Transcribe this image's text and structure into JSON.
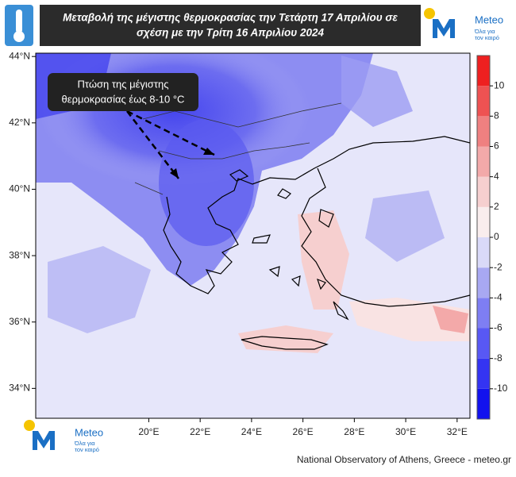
{
  "header": {
    "title_lines": [
      "Μεταβολή της μέγιστης θερμοκρασίας την Τετάρτη 17 Απριλίου σε",
      "σχέση με την Τρίτη 16 Απριλίου 2024"
    ]
  },
  "logo": {
    "name": "Meteo",
    "slogan_lines": [
      "Όλα για",
      "τον καιρό"
    ]
  },
  "annotation": {
    "lines": [
      "Πτώση της μέγιστης",
      "θερμοκρασίας έως 8-10 °C"
    ]
  },
  "map": {
    "xlim": [
      15.6,
      32.5
    ],
    "ylim": [
      33.1,
      44.1
    ],
    "xticks": [
      {
        "value": 20,
        "label": "20°E"
      },
      {
        "value": 22,
        "label": "22°E"
      },
      {
        "value": 24,
        "label": "24°E"
      },
      {
        "value": 26,
        "label": "26°E"
      },
      {
        "value": 28,
        "label": "28°E"
      },
      {
        "value": 30,
        "label": "30°E"
      },
      {
        "value": 32,
        "label": "32°E"
      }
    ],
    "yticks": [
      {
        "value": 44,
        "label": "44°N"
      },
      {
        "value": 42,
        "label": "42°N"
      },
      {
        "value": 40,
        "label": "40°N"
      },
      {
        "value": 38,
        "label": "38°N"
      },
      {
        "value": 36,
        "label": "36°N"
      },
      {
        "value": 34,
        "label": "34°N"
      }
    ]
  },
  "colorbar": {
    "lim": [
      -12,
      12
    ],
    "ticks": [
      10,
      8,
      6,
      4,
      2,
      0,
      -2,
      -4,
      -6,
      -8,
      -10
    ],
    "colors": [
      "#1212ee",
      "#3434f2",
      "#5858f4",
      "#7e7ef3",
      "#a8a8f2",
      "#d9d9f8",
      "#f9eded",
      "#f6cfcf",
      "#f3a9a9",
      "#ef8080",
      "#ee5252",
      "#ee2020"
    ]
  },
  "footer": {
    "credit": "National Observatory of Athens, Greece - meteo.gr"
  }
}
